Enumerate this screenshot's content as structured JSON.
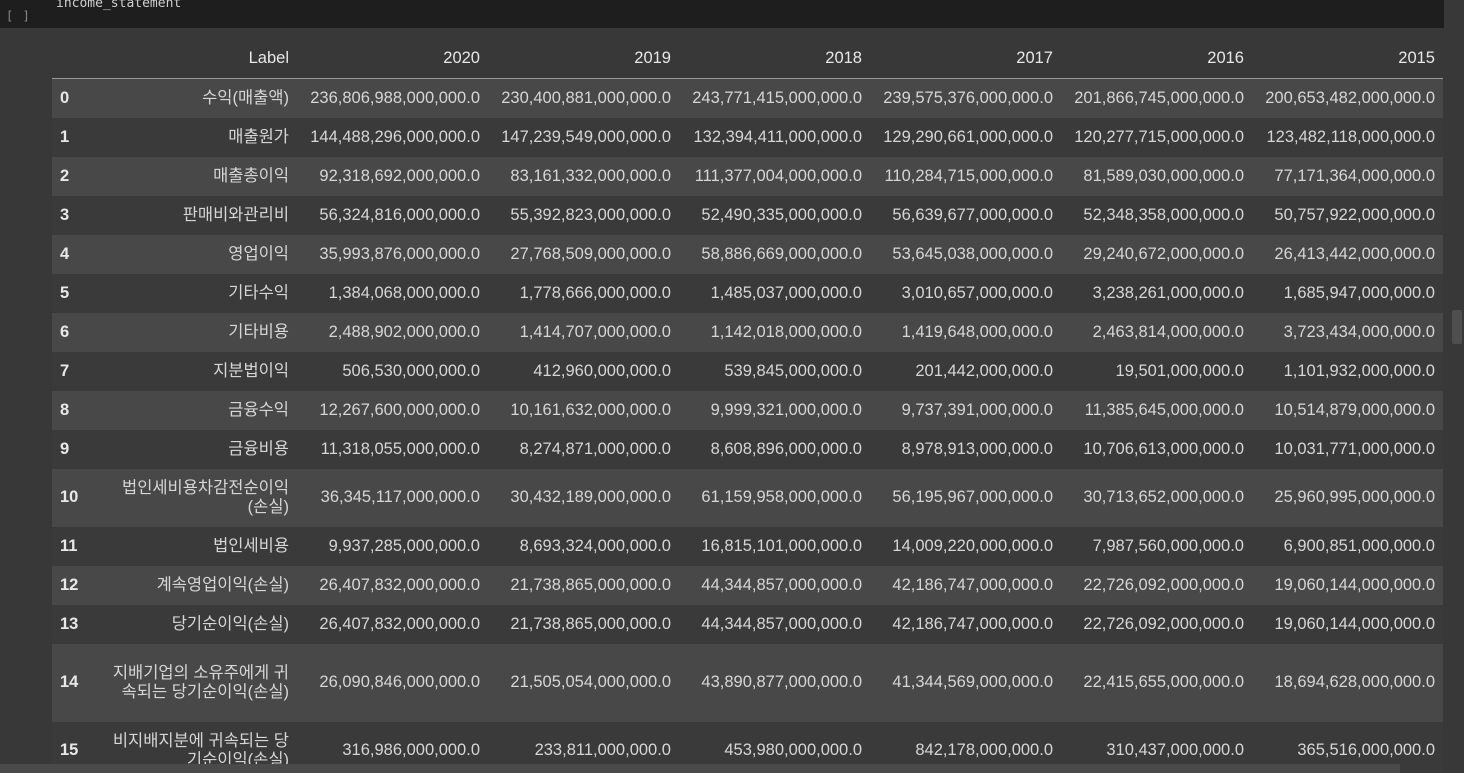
{
  "cell": {
    "exec_count": "[ ]",
    "code": "income_statement"
  },
  "table": {
    "columns": [
      "",
      "Label",
      "2020",
      "2019",
      "2018",
      "2017",
      "2016",
      "2015"
    ],
    "rows": [
      {
        "index": "0",
        "label": "수익(매출액)",
        "values": [
          "236,806,988,000,000.0",
          "230,400,881,000,000.0",
          "243,771,415,000,000.0",
          "239,575,376,000,000.0",
          "201,866,745,000,000.0",
          "200,653,482,000,000.0"
        ]
      },
      {
        "index": "1",
        "label": "매출원가",
        "values": [
          "144,488,296,000,000.0",
          "147,239,549,000,000.0",
          "132,394,411,000,000.0",
          "129,290,661,000,000.0",
          "120,277,715,000,000.0",
          "123,482,118,000,000.0"
        ]
      },
      {
        "index": "2",
        "label": "매출총이익",
        "values": [
          "92,318,692,000,000.0",
          "83,161,332,000,000.0",
          "111,377,004,000,000.0",
          "110,284,715,000,000.0",
          "81,589,030,000,000.0",
          "77,171,364,000,000.0"
        ]
      },
      {
        "index": "3",
        "label": "판매비와관리비",
        "values": [
          "56,324,816,000,000.0",
          "55,392,823,000,000.0",
          "52,490,335,000,000.0",
          "56,639,677,000,000.0",
          "52,348,358,000,000.0",
          "50,757,922,000,000.0"
        ]
      },
      {
        "index": "4",
        "label": "영업이익",
        "values": [
          "35,993,876,000,000.0",
          "27,768,509,000,000.0",
          "58,886,669,000,000.0",
          "53,645,038,000,000.0",
          "29,240,672,000,000.0",
          "26,413,442,000,000.0"
        ]
      },
      {
        "index": "5",
        "label": "기타수익",
        "values": [
          "1,384,068,000,000.0",
          "1,778,666,000,000.0",
          "1,485,037,000,000.0",
          "3,010,657,000,000.0",
          "3,238,261,000,000.0",
          "1,685,947,000,000.0"
        ]
      },
      {
        "index": "6",
        "label": "기타비용",
        "values": [
          "2,488,902,000,000.0",
          "1,414,707,000,000.0",
          "1,142,018,000,000.0",
          "1,419,648,000,000.0",
          "2,463,814,000,000.0",
          "3,723,434,000,000.0"
        ]
      },
      {
        "index": "7",
        "label": "지분법이익",
        "values": [
          "506,530,000,000.0",
          "412,960,000,000.0",
          "539,845,000,000.0",
          "201,442,000,000.0",
          "19,501,000,000.0",
          "1,101,932,000,000.0"
        ]
      },
      {
        "index": "8",
        "label": "금융수익",
        "values": [
          "12,267,600,000,000.0",
          "10,161,632,000,000.0",
          "9,999,321,000,000.0",
          "9,737,391,000,000.0",
          "11,385,645,000,000.0",
          "10,514,879,000,000.0"
        ]
      },
      {
        "index": "9",
        "label": "금융비용",
        "values": [
          "11,318,055,000,000.0",
          "8,274,871,000,000.0",
          "8,608,896,000,000.0",
          "8,978,913,000,000.0",
          "10,706,613,000,000.0",
          "10,031,771,000,000.0"
        ]
      },
      {
        "index": "10",
        "label": "법인세비용차감전순이익(손실)",
        "values": [
          "36,345,117,000,000.0",
          "30,432,189,000,000.0",
          "61,159,958,000,000.0",
          "56,195,967,000,000.0",
          "30,713,652,000,000.0",
          "25,960,995,000,000.0"
        ]
      },
      {
        "index": "11",
        "label": "법인세비용",
        "values": [
          "9,937,285,000,000.0",
          "8,693,324,000,000.0",
          "16,815,101,000,000.0",
          "14,009,220,000,000.0",
          "7,987,560,000,000.0",
          "6,900,851,000,000.0"
        ]
      },
      {
        "index": "12",
        "label": "계속영업이익(손실)",
        "values": [
          "26,407,832,000,000.0",
          "21,738,865,000,000.0",
          "44,344,857,000,000.0",
          "42,186,747,000,000.0",
          "22,726,092,000,000.0",
          "19,060,144,000,000.0"
        ]
      },
      {
        "index": "13",
        "label": "당기순이익(손실)",
        "values": [
          "26,407,832,000,000.0",
          "21,738,865,000,000.0",
          "44,344,857,000,000.0",
          "42,186,747,000,000.0",
          "22,726,092,000,000.0",
          "19,060,144,000,000.0"
        ]
      },
      {
        "index": "14",
        "label": "지배기업의 소유주에게 귀속되는 당기순이익(손실)",
        "values": [
          "26,090,846,000,000.0",
          "21,505,054,000,000.0",
          "43,890,877,000,000.0",
          "41,344,569,000,000.0",
          "22,415,655,000,000.0",
          "18,694,628,000,000.0"
        ]
      },
      {
        "index": "15",
        "label": "비지배지분에 귀속되는 당기순이익(손실)",
        "values": [
          "316,986,000,000.0",
          "233,811,000,000.0",
          "453,980,000,000.0",
          "842,178,000,000.0",
          "310,437,000,000.0",
          "365,516,000,000.0"
        ]
      }
    ]
  }
}
